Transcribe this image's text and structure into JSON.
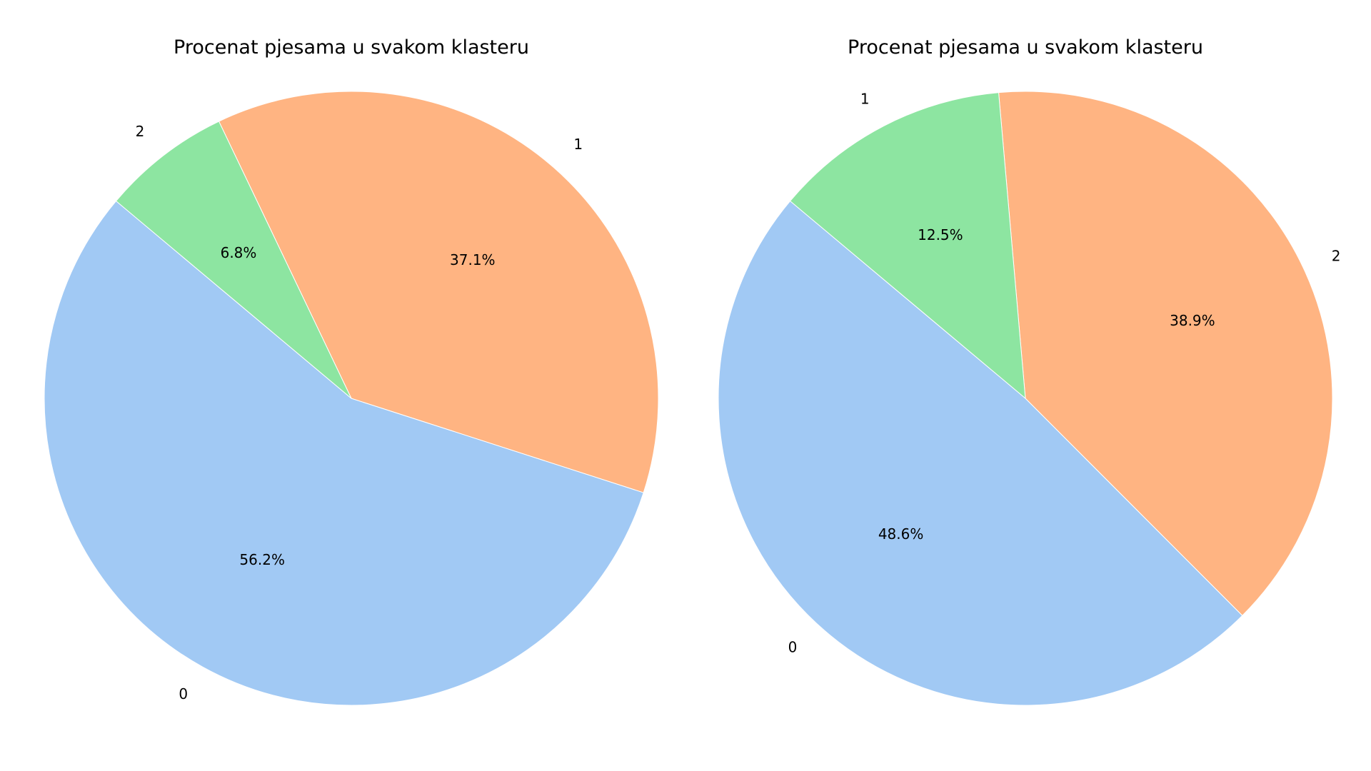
{
  "chart_data": [
    {
      "type": "pie",
      "title": "Procenat pjesama u svakom klasteru",
      "slices": [
        {
          "label": "0",
          "value": 56.2,
          "pct_text": "56.2%",
          "color": "#a1c9f4"
        },
        {
          "label": "1",
          "value": 37.1,
          "pct_text": "37.1%",
          "color": "#ffb482"
        },
        {
          "label": "2",
          "value": 6.8,
          "pct_text": "6.8%",
          "color": "#8de5a1"
        }
      ],
      "start_angle_deg": 140,
      "direction": "counterclockwise"
    },
    {
      "type": "pie",
      "title": "Procenat pjesama u svakom klasteru",
      "slices": [
        {
          "label": "0",
          "value": 48.6,
          "pct_text": "48.6%",
          "color": "#a1c9f4"
        },
        {
          "label": "2",
          "value": 38.9,
          "pct_text": "38.9%",
          "color": "#ffb482"
        },
        {
          "label": "1",
          "value": 12.5,
          "pct_text": "12.5%",
          "color": "#8de5a1"
        }
      ],
      "start_angle_deg": 140,
      "direction": "counterclockwise"
    }
  ]
}
